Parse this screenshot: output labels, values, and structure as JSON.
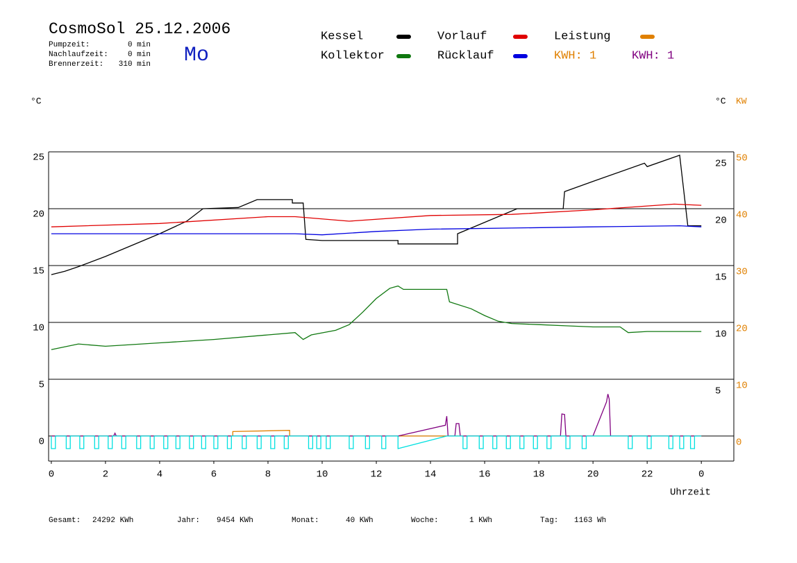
{
  "chart_data": {
    "type": "line",
    "title": "CosmoSol 25.12.2006",
    "weekday": "Mo",
    "info": [
      {
        "label": "Pumpzeit:",
        "value": "0 min"
      },
      {
        "label": "Nachlaufzeit:",
        "value": "0 min"
      },
      {
        "label": "Brennerzeit:",
        "value": "310 min"
      }
    ],
    "ylabel": "°C",
    "y2label": "KW",
    "xlabel": "Uhrzeit",
    "xlim": [
      -0.1,
      25.2
    ],
    "xticks": [
      0,
      2,
      4,
      6,
      8,
      10,
      12,
      14,
      16,
      18,
      20,
      22,
      {
        "value": 24,
        "label": "0"
      }
    ],
    "ylim": [
      -2.2,
      25
    ],
    "yticks": [
      0,
      5,
      10,
      15,
      20,
      25
    ],
    "y_right_ticks": [
      5,
      10,
      15,
      20,
      25
    ],
    "y2lim": [
      -4.4,
      50
    ],
    "y2ticks": [
      0,
      10,
      20,
      30,
      40,
      50
    ],
    "y2color": "#e08000",
    "grid": true,
    "series": [
      {
        "name": "Kessel",
        "color": "#000000",
        "x": [
          0,
          0.5,
          1,
          2,
          3,
          4,
          5,
          5.6,
          6.9,
          7.6,
          8.9,
          8.9,
          9.3,
          9.4,
          10,
          12.8,
          12.8,
          15,
          15,
          17.2,
          18.9,
          18.95,
          20,
          21.9,
          22,
          23.2,
          23.5,
          24
        ],
        "values": [
          14.2,
          14.5,
          14.9,
          15.8,
          16.8,
          17.8,
          18.9,
          20,
          20.1,
          20.8,
          20.8,
          20.5,
          20.5,
          17.3,
          17.2,
          17.2,
          16.9,
          16.9,
          17.8,
          20,
          20,
          21.5,
          22.4,
          24,
          23.7,
          24.7,
          18.5,
          18.5
        ]
      },
      {
        "name": "Kollektor",
        "color": "#107810",
        "x": [
          0,
          1,
          2,
          4,
          6,
          8,
          9,
          9.3,
          9.6,
          10.5,
          11,
          11.5,
          12,
          12.5,
          12.8,
          13,
          14.6,
          14.7,
          15.5,
          16,
          16.5,
          17,
          18,
          19,
          20,
          21,
          21.3,
          22,
          23,
          24
        ],
        "values": [
          7.6,
          8.1,
          7.9,
          8.2,
          8.5,
          8.9,
          9.1,
          8.5,
          8.9,
          9.3,
          9.8,
          10.9,
          12.1,
          13.0,
          13.2,
          12.9,
          12.9,
          11.8,
          11.2,
          10.6,
          10.1,
          9.9,
          9.8,
          9.7,
          9.6,
          9.6,
          9.1,
          9.2,
          9.2,
          9.2
        ]
      },
      {
        "name": "Vorlauf",
        "color": "#e00000",
        "x": [
          0,
          4,
          8,
          9,
          11,
          14,
          17,
          20,
          23,
          24
        ],
        "values": [
          18.4,
          18.7,
          19.3,
          19.3,
          18.9,
          19.4,
          19.5,
          19.9,
          20.4,
          20.3
        ]
      },
      {
        "name": "Rücklauf",
        "color": "#0000e0",
        "x": [
          0,
          9,
          10,
          12,
          14,
          17,
          20,
          23.2,
          24
        ],
        "values": [
          17.8,
          17.8,
          17.7,
          18.0,
          18.2,
          18.3,
          18.4,
          18.5,
          18.4
        ]
      },
      {
        "name": "Leistung",
        "color": "#e08000",
        "axis": "y2",
        "x": [
          0,
          6.7,
          6.7,
          8.8,
          8.8,
          24
        ],
        "values": [
          0,
          0,
          0.8,
          1.0,
          0,
          0
        ]
      },
      {
        "color": "#800080",
        "axis": "y2",
        "x": [
          0,
          2.3,
          2.35,
          2.4,
          12.8,
          14.55,
          14.6,
          14.65,
          14.9,
          14.95,
          15.05,
          15.1,
          18.8,
          18.85,
          18.95,
          19.0,
          20.0,
          20.5,
          20.55,
          20.6,
          20.65,
          24
        ],
        "values": [
          0,
          0,
          0.5,
          0,
          0,
          1.9,
          3.5,
          0,
          0,
          2.2,
          2.2,
          0,
          0,
          3.9,
          3.8,
          0,
          0,
          6.0,
          7.4,
          6.5,
          0,
          0
        ]
      },
      {
        "color": "#00e0e0",
        "x": [
          0,
          0,
          0.15,
          0.15,
          0.55,
          0.55,
          0.7,
          0.7,
          1.05,
          1.05,
          1.2,
          1.2,
          1.6,
          1.6,
          1.75,
          1.75,
          2.1,
          2.1,
          2.25,
          2.25,
          2.6,
          2.6,
          2.75,
          2.75,
          3.15,
          3.15,
          3.3,
          3.3,
          3.65,
          3.65,
          3.8,
          3.8,
          4.15,
          4.15,
          4.3,
          4.3,
          4.6,
          4.6,
          4.75,
          4.75,
          5.1,
          5.1,
          5.25,
          5.25,
          5.55,
          5.55,
          5.7,
          5.7,
          6,
          6,
          6.15,
          6.15,
          6.5,
          6.5,
          6.65,
          6.65,
          7.05,
          7.05,
          7.2,
          7.2,
          7.6,
          7.6,
          7.75,
          7.75,
          8.1,
          8.1,
          8.25,
          8.25,
          8.6,
          8.6,
          8.75,
          8.75,
          9.5,
          9.5,
          9.65,
          9.65,
          9.8,
          9.8,
          9.95,
          9.95,
          10.15,
          10.15,
          10.3,
          10.3,
          11,
          11,
          11.15,
          11.15,
          11.6,
          11.6,
          11.75,
          11.75,
          12.2,
          12.2,
          12.35,
          12.35,
          12.8,
          12.8,
          14.6,
          15.2,
          15.2,
          15.35,
          15.35,
          15.8,
          15.8,
          15.95,
          15.95,
          16.3,
          16.3,
          16.45,
          16.45,
          16.8,
          16.8,
          16.95,
          16.95,
          17.3,
          17.3,
          17.45,
          17.45,
          17.8,
          17.8,
          17.95,
          17.95,
          18.3,
          18.3,
          18.45,
          18.45,
          19,
          19,
          19.15,
          19.15,
          19.6,
          19.6,
          19.75,
          19.75,
          21.3,
          21.3,
          21.45,
          21.45,
          22,
          22,
          22.15,
          22.15,
          22.8,
          22.8,
          22.95,
          22.95,
          23.2,
          23.2,
          23.35,
          23.35,
          23.6,
          23.6,
          23.75,
          23.75,
          24
        ],
        "values": [
          0,
          -1.1,
          -1.1,
          0,
          0,
          -1.1,
          -1.1,
          0,
          0,
          -1.1,
          -1.1,
          0,
          0,
          -1.1,
          -1.1,
          0,
          0,
          -1.1,
          -1.1,
          0,
          0,
          -1.1,
          -1.1,
          0,
          0,
          -1.1,
          -1.1,
          0,
          0,
          -1.1,
          -1.1,
          0,
          0,
          -1.1,
          -1.1,
          0,
          0,
          -1.1,
          -1.1,
          0,
          0,
          -1.1,
          -1.1,
          0,
          0,
          -1.1,
          -1.1,
          0,
          0,
          -1.1,
          -1.1,
          0,
          0,
          -1.1,
          -1.1,
          0,
          0,
          -1.1,
          -1.1,
          0,
          0,
          -1.1,
          -1.1,
          0,
          0,
          -1.1,
          -1.1,
          0,
          0,
          -1.1,
          -1.1,
          0,
          0,
          -1.1,
          -1.1,
          0,
          0,
          -1.1,
          -1.1,
          0,
          0,
          -1.1,
          -1.1,
          0,
          0,
          -1.1,
          -1.1,
          0,
          0,
          -1.1,
          -1.1,
          0,
          0,
          -1.1,
          -1.1,
          0,
          0,
          -1.1,
          0,
          0,
          -1.1,
          -1.1,
          0,
          0,
          -1.1,
          -1.1,
          0,
          0,
          -1.1,
          -1.1,
          0,
          0,
          -1.1,
          -1.1,
          0,
          0,
          -1.1,
          -1.1,
          0,
          0,
          -1.1,
          -1.1,
          0,
          0,
          -1.1,
          -1.1,
          0,
          0,
          -1.1,
          -1.1,
          0,
          0,
          -1.1,
          -1.1,
          0,
          0,
          -1.1,
          -1.1,
          0,
          0,
          -1.1,
          -1.1,
          0,
          0,
          -1.1,
          -1.1,
          0,
          0,
          -1.1,
          -1.1,
          0,
          0,
          -1.1,
          -1.1,
          0,
          0
        ]
      }
    ],
    "annotations": [
      {
        "text": "KWH: 1",
        "color": "#e08000"
      },
      {
        "text": "KWH: 1",
        "color": "#800080"
      }
    ],
    "totals": [
      {
        "label": "Gesamt:",
        "value": "24292 KWh"
      },
      {
        "label": "Jahr:",
        "value": "9454 KWh"
      },
      {
        "label": "Monat:",
        "value": "40 KWh"
      },
      {
        "label": "Woche:",
        "value": "1 KWh"
      },
      {
        "label": "Tag:",
        "value": "1163 Wh"
      }
    ]
  }
}
